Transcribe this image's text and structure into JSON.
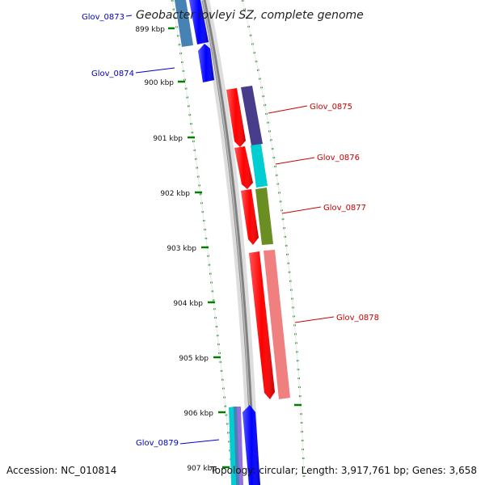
{
  "title": "Geobacter lovleyi SZ, complete genome",
  "accession": "Accession: NC_010814",
  "topology": "Topology: circular; Length: 3,917,761 bp; Genes: 3,658",
  "ticks": [
    "899 kbp",
    "900 kbp",
    "901 kbp",
    "902 kbp",
    "903 kbp",
    "904 kbp",
    "905 kbp",
    "906 kbp",
    "907 kbp"
  ],
  "genes": [
    {
      "id": "Glov_0873",
      "label": "Glov_0873",
      "strand": "reverse",
      "color": "#0000cc"
    },
    {
      "id": "Glov_0874",
      "label": "Glov_0874",
      "strand": "reverse",
      "color": "#0000cc"
    },
    {
      "id": "Glov_0875",
      "label": "Glov_0875",
      "strand": "forward",
      "color": "#cc0000"
    },
    {
      "id": "Glov_0876",
      "label": "Glov_0876",
      "strand": "forward",
      "color": "#cc0000"
    },
    {
      "id": "Glov_0877",
      "label": "Glov_0877",
      "strand": "forward",
      "color": "#cc0000"
    },
    {
      "id": "Glov_0878",
      "label": "Glov_0878",
      "strand": "forward",
      "color": "#cc0000"
    },
    {
      "id": "Glov_0879",
      "label": "Glov_0879",
      "strand": "reverse",
      "color": "#0000cc"
    }
  ],
  "colors": {
    "backbone": "#808080",
    "tick": "#008000",
    "forward_cds": "#ff0000",
    "reverse_cds": "#0000ff",
    "cog_purple": "#483d8b",
    "cog_cyan": "#00ced1",
    "cog_olive": "#6b8e23",
    "cog_pink": "#f08080",
    "cog_steelblue": "#4682b4"
  }
}
